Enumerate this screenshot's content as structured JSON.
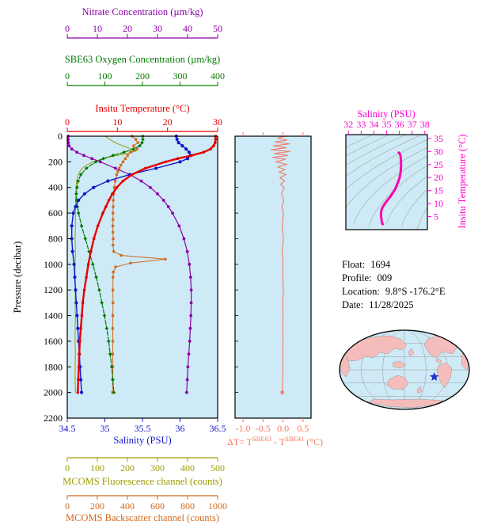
{
  "colors": {
    "nitrate": "#8B00A8",
    "oxygen": "#007A00",
    "temperature": "#E60000",
    "salinity": "#1414CC",
    "fluorescence": "#9C9C00",
    "backscatter": "#D2691E",
    "delta_t": "#F87461",
    "magenta": "#FF00CC",
    "ts_curve": "#FF00AA",
    "pressure": "#000000",
    "frame": "#000000",
    "plot_bg": "#CDEAF6",
    "contour": "#9AAA9A",
    "land": "#F5BCBC",
    "star": "#2233CC"
  },
  "info": {
    "rows": [
      {
        "label": "Float:",
        "value": "1694"
      },
      {
        "label": "Profile:",
        "value": "009"
      },
      {
        "label": "Location:",
        "value": "9.8°S -176.2°E"
      },
      {
        "label": "Date:",
        "value": "11/28/2025"
      }
    ]
  },
  "chart_data": [
    {
      "type": "line",
      "name": "multi-variable-profile-plot",
      "y_axis": {
        "label": "Pressure (decibar)",
        "range": [
          0,
          2200
        ],
        "ticks": [
          0,
          200,
          400,
          600,
          800,
          1000,
          1200,
          1400,
          1600,
          1800,
          2000,
          2200
        ]
      },
      "x_axes": [
        {
          "id": "nitrate",
          "label": "Nitrate Concentration (µm/kg)",
          "color": "#8B00A8",
          "range": [
            0,
            50
          ],
          "ticks": [
            "0",
            "10",
            "20",
            "30",
            "40",
            "50"
          ],
          "position": "top"
        },
        {
          "id": "oxygen",
          "label": "SBE63 Oxygen Concentration (µm/kg)",
          "color": "#007A00",
          "range": [
            0,
            400
          ],
          "ticks": [
            "0",
            "100",
            "200",
            "300",
            "400"
          ],
          "position": "top"
        },
        {
          "id": "temperature",
          "label": "Insitu Temperature (°C)",
          "color": "#E60000",
          "range": [
            0,
            30
          ],
          "ticks": [
            "0",
            "10",
            "20",
            "30"
          ],
          "position": "top"
        },
        {
          "id": "salinity",
          "label": "Salinity (PSU)",
          "color": "#1414CC",
          "range": [
            34.5,
            36.5
          ],
          "ticks": [
            "34.5",
            "35",
            "35.5",
            "36",
            "36.5"
          ],
          "position": "bottom"
        },
        {
          "id": "fluorescence",
          "label": "MCOMS Fluorescence channel (counts)",
          "color": "#9C9C00",
          "range": [
            0,
            500
          ],
          "ticks": [
            "0",
            "100",
            "200",
            "300",
            "400",
            "500"
          ],
          "position": "bottom"
        },
        {
          "id": "backscatter",
          "label": "MCOMS Backscatter channel (counts)",
          "color": "#D2691E",
          "range": [
            0,
            1000
          ],
          "ticks": [
            "0",
            "200",
            "400",
            "600",
            "800",
            "1000"
          ],
          "position": "bottom"
        }
      ],
      "series": [
        {
          "name": "fluorescence",
          "axis": "fluorescence",
          "pressure": [
            0,
            20,
            40,
            60,
            80,
            100,
            115,
            130,
            145,
            160,
            180,
            200,
            225,
            250,
            275,
            300,
            350,
            400,
            500,
            600,
            700,
            800,
            900,
            1000,
            1100,
            1200,
            1300,
            1400,
            1500,
            1600,
            1700,
            1800,
            1900,
            2000
          ],
          "values": [
            125,
            138,
            152,
            168,
            190,
            212,
            230,
            208,
            176,
            144,
            112,
            86,
            64,
            50,
            42,
            36,
            31,
            29,
            28,
            27,
            27,
            26,
            27,
            26,
            26,
            27,
            26,
            27,
            26,
            26,
            27,
            26,
            26,
            27
          ]
        },
        {
          "name": "backscatter",
          "axis": "backscatter",
          "pressure": [
            0,
            25,
            50,
            75,
            100,
            125,
            150,
            175,
            200,
            225,
            250,
            275,
            300,
            350,
            400,
            450,
            500,
            550,
            600,
            650,
            700,
            750,
            800,
            850,
            900,
            930,
            960,
            990,
            1020,
            1060,
            1100,
            1200,
            1300,
            1400,
            1500,
            1600,
            1700,
            1800,
            1900,
            2000
          ],
          "values": [
            432,
            456,
            470,
            441,
            464,
            421,
            401,
            386,
            371,
            357,
            346,
            336,
            329,
            319,
            313,
            309,
            306,
            305,
            304,
            304,
            303,
            304,
            305,
            304,
            309,
            358,
            652,
            421,
            321,
            306,
            304,
            303,
            304,
            303,
            302,
            303,
            302,
            303,
            302,
            301
          ]
        },
        {
          "name": "nitrate",
          "axis": "nitrate",
          "pressure": [
            0,
            25,
            50,
            75,
            100,
            125,
            150,
            175,
            200,
            250,
            300,
            350,
            400,
            450,
            500,
            550,
            600,
            700,
            800,
            900,
            1000,
            1100,
            1200,
            1300,
            1400,
            1500,
            1600,
            1700,
            1800,
            1900,
            2000
          ],
          "values": [
            0.3,
            0.3,
            0.4,
            0.6,
            1.5,
            3.2,
            5.5,
            8.2,
            11.0,
            16.0,
            20.8,
            24.6,
            27.6,
            30.0,
            32.0,
            33.6,
            35.0,
            37.2,
            38.8,
            39.9,
            40.6,
            41.0,
            41.2,
            41.2,
            41.1,
            40.9,
            40.7,
            40.4,
            40.1,
            39.9,
            39.7
          ]
        },
        {
          "name": "oxygen",
          "axis": "oxygen",
          "pressure": [
            0,
            25,
            50,
            75,
            100,
            125,
            150,
            175,
            200,
            250,
            300,
            350,
            400,
            450,
            500,
            550,
            600,
            700,
            800,
            900,
            1000,
            1100,
            1200,
            1300,
            1400,
            1500,
            1600,
            1700,
            1800,
            1900,
            2000
          ],
          "values": [
            201,
            201,
            199,
            193,
            176,
            151,
            122,
            96,
            76,
            51,
            36,
            29,
            26,
            24,
            25,
            27,
            30,
            38,
            48,
            58,
            68,
            77,
            85,
            92,
            99,
            105,
            110,
            114,
            118,
            121,
            124
          ]
        },
        {
          "name": "salinity",
          "axis": "salinity",
          "pressure": [
            0,
            25,
            50,
            75,
            100,
            125,
            150,
            175,
            200,
            250,
            300,
            350,
            400,
            450,
            500,
            550,
            600,
            700,
            800,
            900,
            1000,
            1100,
            1200,
            1300,
            1400,
            1500,
            1600,
            1700,
            1800,
            1900,
            2000
          ],
          "values": [
            35.95,
            35.96,
            35.98,
            36.03,
            36.08,
            36.12,
            36.14,
            36.1,
            36.0,
            35.68,
            35.33,
            35.04,
            34.85,
            34.73,
            34.65,
            34.61,
            34.58,
            34.56,
            34.56,
            34.57,
            34.59,
            34.6,
            34.61,
            34.62,
            34.63,
            34.64,
            34.65,
            34.66,
            34.67,
            34.68,
            34.69
          ]
        },
        {
          "name": "temperature",
          "axis": "temperature",
          "pressure": [
            0,
            25,
            50,
            75,
            100,
            125,
            150,
            175,
            200,
            250,
            300,
            350,
            400,
            450,
            500,
            550,
            600,
            700,
            800,
            900,
            1000,
            1100,
            1200,
            1300,
            1400,
            1500,
            1600,
            1700,
            1800,
            1900,
            2000
          ],
          "values": [
            29.6,
            29.6,
            29.5,
            29.2,
            28.6,
            27.2,
            24.8,
            22.0,
            19.6,
            15.6,
            12.9,
            11.1,
            9.9,
            9.0,
            8.3,
            7.7,
            7.1,
            6.1,
            5.3,
            4.7,
            4.2,
            3.8,
            3.4,
            3.1,
            2.9,
            2.7,
            2.5,
            2.4,
            2.3,
            2.2,
            2.1
          ]
        }
      ]
    },
    {
      "type": "line",
      "name": "temperature-difference-plot",
      "x_axis": {
        "label": "ΔT= TSBE63 - TSBE41 (°C)",
        "label_parts": {
          "p1": "ΔT= T",
          "s1": "SBE63",
          "p2": " - T",
          "s2": "SBE41",
          "p3": " (°C)"
        },
        "color": "#F87461",
        "range": [
          -1.2,
          0.7
        ],
        "ticks": [
          "-1.0",
          "-0.5",
          "0.0",
          "0.5"
        ]
      },
      "y_axis": {
        "label": "Pressure (decibar)",
        "range": [
          0,
          2200
        ]
      },
      "series": [
        {
          "name": "delta-t",
          "pressure": [
            0,
            15,
            30,
            45,
            60,
            75,
            90,
            105,
            120,
            135,
            150,
            165,
            180,
            200,
            220,
            240,
            260,
            280,
            300,
            325,
            350,
            375,
            400,
            450,
            500,
            550,
            600,
            700,
            800,
            900,
            1000,
            1100,
            1200,
            1300,
            1400,
            1500,
            1600,
            1700,
            1800,
            1900,
            2000
          ],
          "values": [
            0.06,
            -0.14,
            0.1,
            -0.2,
            0.16,
            -0.24,
            0.08,
            -0.3,
            0.18,
            -0.22,
            0.12,
            -0.26,
            0.06,
            -0.18,
            0.1,
            -0.14,
            0.05,
            -0.1,
            0.07,
            -0.08,
            0.04,
            -0.06,
            0.03,
            -0.04,
            0.02,
            -0.03,
            0.01,
            -0.02,
            0.01,
            -0.02,
            0.0,
            -0.01,
            0.01,
            -0.01,
            0.0,
            -0.01,
            0.0,
            -0.01,
            0.0,
            -0.01,
            -0.02
          ]
        }
      ]
    },
    {
      "type": "line",
      "name": "ts-diagram",
      "x_axis": {
        "label": "Salinity (PSU)",
        "color": "#FF00CC",
        "range": [
          31.8,
          38.2
        ],
        "ticks": [
          "32",
          "33",
          "34",
          "35",
          "36",
          "37",
          "38"
        ],
        "position": "top"
      },
      "y_axis": {
        "label": "Insitu Temperature (°C)",
        "color": "#FF00CC",
        "range": [
          0,
          36.5
        ],
        "ticks": [
          "5",
          "10",
          "15",
          "20",
          "25",
          "30",
          "35"
        ],
        "position": "right"
      },
      "contours": {
        "sigma_values": [
          17,
          18,
          19,
          20,
          21,
          22,
          23,
          24,
          25,
          26,
          27
        ]
      },
      "series": [
        {
          "name": "t-s-profile",
          "salinity": [
            35.95,
            35.96,
            35.98,
            36.03,
            36.08,
            36.12,
            36.14,
            36.1,
            36.0,
            35.68,
            35.33,
            35.04,
            34.85,
            34.73,
            34.65,
            34.61,
            34.58,
            34.56,
            34.56,
            34.57,
            34.59,
            34.6,
            34.61,
            34.62,
            34.63,
            34.64,
            34.65,
            34.66,
            34.67,
            34.68,
            34.69
          ],
          "temperature": [
            29.6,
            29.6,
            29.5,
            29.2,
            28.6,
            27.2,
            24.8,
            22.0,
            19.6,
            15.6,
            12.9,
            11.1,
            9.9,
            9.0,
            8.3,
            7.7,
            7.1,
            6.1,
            5.3,
            4.7,
            4.2,
            3.8,
            3.4,
            3.1,
            2.9,
            2.7,
            2.5,
            2.4,
            2.3,
            2.2,
            2.1
          ]
        }
      ]
    },
    {
      "type": "map",
      "name": "float-location-map",
      "marker": {
        "kind": "star",
        "fx": 0.73,
        "fy": 0.59
      }
    }
  ]
}
